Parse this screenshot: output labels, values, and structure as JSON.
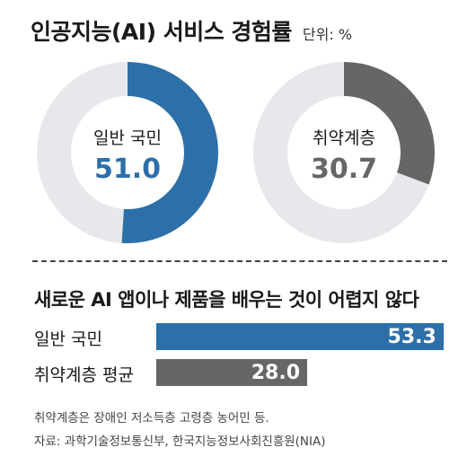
{
  "header": {
    "title": "인공지능(AI) 서비스 경험률",
    "unit": "단위: %"
  },
  "chart_data": [
    {
      "type": "pie",
      "variant": "donut",
      "categories": [
        "일반 국민",
        "취약계층"
      ],
      "donuts": [
        {
          "label": "일반 국민",
          "value": 51.0,
          "value_text": "51.0",
          "color": "#2d6fa8"
        },
        {
          "label": "취약계층",
          "value": 30.7,
          "value_text": "30.7",
          "color": "#666666"
        }
      ],
      "remainder_color": "#e6e8ec"
    },
    {
      "type": "bar",
      "orientation": "horizontal",
      "title": "새로운 AI 앱이나 제품을 배우는 것이 어렵지 않다",
      "categories": [
        "일반 국민",
        "취약계층 평균"
      ],
      "values": [
        53.3,
        28.0
      ],
      "value_texts": [
        "53.3",
        "28.0"
      ],
      "colors": [
        "#2d6fa8",
        "#666666"
      ]
    }
  ],
  "notes": {
    "footnote": "취약계층은 장애인 저소득층 고령층 농어민 등.",
    "source": "자료: 과학기술정보통신부, 한국지능정보사회진흥원(NIA)"
  }
}
